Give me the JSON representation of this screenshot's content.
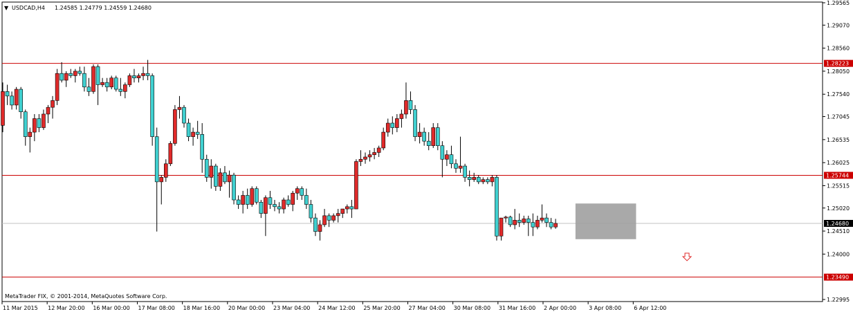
{
  "header": {
    "menu_glyph": "▼",
    "symbol": "USDCAD,H4",
    "ohlc": "1.24585 1.24779 1.24559 1.24680"
  },
  "footer": {
    "copyright": "MetaTrader FIX, © 2001-2014, MetaQuotes Software Corp."
  },
  "colors": {
    "bull": "#e02a2a",
    "bear": "#40d0d0",
    "wick": "#000000",
    "level_line": "#cc0000",
    "current_line": "#c0c0c0",
    "current_label_bg": "#000000",
    "box_fill": "#a0a0a0",
    "arrow": "#e02a2a"
  },
  "icons": {
    "sell_arrow": "down-arrow-icon"
  },
  "chart_data": {
    "type": "candlestick",
    "title": "USDCAD,H4",
    "ylim": [
      1.22995,
      1.29565
    ],
    "y_ticks": [
      "1.29565",
      "1.29070",
      "1.28560",
      "1.28050",
      "1.27540",
      "1.27045",
      "1.26535",
      "1.26025",
      "1.25515",
      "1.25020",
      "1.24510",
      "1.24000",
      "1.22995"
    ],
    "x_ticks": [
      "11 Mar 2015",
      "12 Mar 20:00",
      "16 Mar 00:00",
      "17 Mar 08:00",
      "18 Mar 16:00",
      "20 Mar 00:00",
      "23 Mar 04:00",
      "24 Mar 12:00",
      "25 Mar 20:00",
      "27 Mar 04:00",
      "30 Mar 08:00",
      "31 Mar 16:00",
      "2 Apr 00:00",
      "3 Apr 08:00",
      "6 Apr 12:00"
    ],
    "levels": [
      {
        "price": 1.28223,
        "label": "1.28223"
      },
      {
        "price": 1.25744,
        "label": "1.25744"
      },
      {
        "price": 1.2349,
        "label": "1.23490"
      }
    ],
    "current_price": {
      "price": 1.2468,
      "label": "1.24680"
    },
    "consolidation_box": {
      "start_index": 127,
      "end_index": 139,
      "high": 1.2512,
      "low": 1.2433
    },
    "sell_arrow": {
      "index": 151,
      "price": 1.2393
    },
    "candles": [
      [
        1.2685,
        1.278,
        1.267,
        1.276
      ],
      [
        1.276,
        1.2775,
        1.273,
        1.275
      ],
      [
        1.275,
        1.276,
        1.272,
        1.273
      ],
      [
        1.273,
        1.277,
        1.272,
        1.2765
      ],
      [
        1.2765,
        1.277,
        1.27,
        1.2715
      ],
      [
        1.2715,
        1.272,
        1.264,
        1.266
      ],
      [
        1.266,
        1.268,
        1.2625,
        1.267
      ],
      [
        1.267,
        1.271,
        1.265,
        1.27
      ],
      [
        1.27,
        1.271,
        1.267,
        1.268
      ],
      [
        1.268,
        1.272,
        1.2675,
        1.271
      ],
      [
        1.271,
        1.273,
        1.269,
        1.2725
      ],
      [
        1.2725,
        1.275,
        1.27,
        1.274
      ],
      [
        1.274,
        1.281,
        1.273,
        1.28
      ],
      [
        1.28,
        1.2825,
        1.278,
        1.2785
      ],
      [
        1.2785,
        1.2805,
        1.277,
        1.28
      ],
      [
        1.28,
        1.281,
        1.279,
        1.2795
      ],
      [
        1.2795,
        1.281,
        1.278,
        1.2805
      ],
      [
        1.2805,
        1.2815,
        1.2795,
        1.28
      ],
      [
        1.28,
        1.2815,
        1.276,
        1.277
      ],
      [
        1.277,
        1.279,
        1.275,
        1.276
      ],
      [
        1.276,
        1.282,
        1.2755,
        1.2815
      ],
      [
        1.2815,
        1.282,
        1.273,
        1.2775
      ],
      [
        1.2775,
        1.279,
        1.277,
        1.278
      ],
      [
        1.278,
        1.279,
        1.276,
        1.277
      ],
      [
        1.277,
        1.2795,
        1.2765,
        1.279
      ],
      [
        1.279,
        1.2795,
        1.276,
        1.2765
      ],
      [
        1.2765,
        1.279,
        1.275,
        1.276
      ],
      [
        1.276,
        1.278,
        1.2745,
        1.2775
      ],
      [
        1.2775,
        1.28,
        1.277,
        1.2795
      ],
      [
        1.2795,
        1.281,
        1.278,
        1.279
      ],
      [
        1.279,
        1.28,
        1.278,
        1.2795
      ],
      [
        1.2795,
        1.2815,
        1.2785,
        1.28
      ],
      [
        1.28,
        1.283,
        1.2785,
        1.2795
      ],
      [
        1.2795,
        1.28,
        1.264,
        1.266
      ],
      [
        1.266,
        1.268,
        1.245,
        1.256
      ],
      [
        1.256,
        1.2575,
        1.251,
        1.257
      ],
      [
        1.257,
        1.261,
        1.256,
        1.26
      ],
      [
        1.26,
        1.265,
        1.2595,
        1.2645
      ],
      [
        1.2645,
        1.273,
        1.264,
        1.272
      ],
      [
        1.272,
        1.275,
        1.27,
        1.2725
      ],
      [
        1.2725,
        1.273,
        1.268,
        1.269
      ],
      [
        1.269,
        1.27,
        1.265,
        1.266
      ],
      [
        1.266,
        1.268,
        1.264,
        1.267
      ],
      [
        1.267,
        1.2695,
        1.2655,
        1.2665
      ],
      [
        1.2665,
        1.269,
        1.258,
        1.261
      ],
      [
        1.261,
        1.262,
        1.256,
        1.257
      ],
      [
        1.257,
        1.261,
        1.2545,
        1.2595
      ],
      [
        1.2595,
        1.26,
        1.254,
        1.255
      ],
      [
        1.255,
        1.259,
        1.254,
        1.258
      ],
      [
        1.258,
        1.2595,
        1.2555,
        1.256
      ],
      [
        1.256,
        1.2585,
        1.2525,
        1.2575
      ],
      [
        1.2575,
        1.258,
        1.251,
        1.252
      ],
      [
        1.252,
        1.253,
        1.25,
        1.251
      ],
      [
        1.251,
        1.254,
        1.249,
        1.253
      ],
      [
        1.253,
        1.2545,
        1.25,
        1.251
      ],
      [
        1.251,
        1.255,
        1.2505,
        1.2545
      ],
      [
        1.2545,
        1.255,
        1.251,
        1.2515
      ],
      [
        1.2515,
        1.252,
        1.248,
        1.249
      ],
      [
        1.249,
        1.253,
        1.244,
        1.2525
      ],
      [
        1.2525,
        1.254,
        1.25,
        1.251
      ],
      [
        1.251,
        1.252,
        1.2495,
        1.2505
      ],
      [
        1.2505,
        1.2515,
        1.249,
        1.25
      ],
      [
        1.25,
        1.2525,
        1.249,
        1.252
      ],
      [
        1.252,
        1.253,
        1.2505,
        1.251
      ],
      [
        1.251,
        1.254,
        1.2495,
        1.2535
      ],
      [
        1.2535,
        1.255,
        1.252,
        1.2545
      ],
      [
        1.2545,
        1.255,
        1.252,
        1.253
      ],
      [
        1.253,
        1.2545,
        1.25,
        1.251
      ],
      [
        1.251,
        1.252,
        1.247,
        1.248
      ],
      [
        1.248,
        1.249,
        1.244,
        1.245
      ],
      [
        1.245,
        1.2475,
        1.243,
        1.2465
      ],
      [
        1.2465,
        1.25,
        1.246,
        1.2485
      ],
      [
        1.2485,
        1.249,
        1.246,
        1.2475
      ],
      [
        1.2475,
        1.249,
        1.247,
        1.2485
      ],
      [
        1.2485,
        1.25,
        1.247,
        1.249
      ],
      [
        1.249,
        1.25,
        1.248,
        1.25
      ],
      [
        1.25,
        1.251,
        1.249,
        1.2505
      ],
      [
        1.2505,
        1.252,
        1.248,
        1.25
      ],
      [
        1.25,
        1.261,
        1.25,
        1.2605
      ],
      [
        1.2605,
        1.263,
        1.2595,
        1.261
      ],
      [
        1.261,
        1.2625,
        1.26,
        1.2615
      ],
      [
        1.2615,
        1.263,
        1.2605,
        1.262
      ],
      [
        1.262,
        1.2635,
        1.261,
        1.2625
      ],
      [
        1.2625,
        1.264,
        1.2615,
        1.2635
      ],
      [
        1.2635,
        1.268,
        1.263,
        1.267
      ],
      [
        1.267,
        1.27,
        1.266,
        1.269
      ],
      [
        1.269,
        1.2705,
        1.2665,
        1.268
      ],
      [
        1.268,
        1.271,
        1.267,
        1.27
      ],
      [
        1.27,
        1.272,
        1.268,
        1.271
      ],
      [
        1.271,
        1.278,
        1.27,
        1.274
      ],
      [
        1.274,
        1.276,
        1.271,
        1.272
      ],
      [
        1.272,
        1.273,
        1.265,
        1.266
      ],
      [
        1.266,
        1.269,
        1.2645,
        1.267
      ],
      [
        1.267,
        1.268,
        1.264,
        1.265
      ],
      [
        1.265,
        1.267,
        1.263,
        1.264
      ],
      [
        1.264,
        1.269,
        1.2635,
        1.268
      ],
      [
        1.268,
        1.269,
        1.263,
        1.264
      ],
      [
        1.264,
        1.265,
        1.257,
        1.261
      ],
      [
        1.261,
        1.263,
        1.2595,
        1.262
      ],
      [
        1.262,
        1.264,
        1.259,
        1.26
      ],
      [
        1.26,
        1.261,
        1.258,
        1.259
      ],
      [
        1.259,
        1.266,
        1.258,
        1.2595
      ],
      [
        1.2595,
        1.26,
        1.256,
        1.257
      ],
      [
        1.257,
        1.2585,
        1.255,
        1.2565
      ],
      [
        1.2565,
        1.258,
        1.256,
        1.257
      ],
      [
        1.257,
        1.2575,
        1.2555,
        1.256
      ],
      [
        1.256,
        1.257,
        1.2555,
        1.2565
      ],
      [
        1.2565,
        1.257,
        1.2555,
        1.256
      ],
      [
        1.256,
        1.2575,
        1.255,
        1.257
      ],
      [
        1.257,
        1.2575,
        1.243,
        1.244
      ],
      [
        1.244,
        1.248,
        1.243,
        1.248
      ],
      [
        1.248,
        1.2485,
        1.247,
        1.2482
      ],
      [
        1.2482,
        1.2485,
        1.246,
        1.2465
      ],
      [
        1.2465,
        1.25,
        1.2455,
        1.2475
      ],
      [
        1.2475,
        1.249,
        1.246,
        1.247
      ],
      [
        1.247,
        1.2485,
        1.2465,
        1.2478
      ],
      [
        1.2478,
        1.2485,
        1.244,
        1.247
      ],
      [
        1.247,
        1.249,
        1.244,
        1.246
      ],
      [
        1.246,
        1.2485,
        1.2455,
        1.2475
      ],
      [
        1.2475,
        1.251,
        1.247,
        1.248
      ],
      [
        1.248,
        1.249,
        1.246,
        1.247
      ],
      [
        1.247,
        1.248,
        1.2455,
        1.246
      ],
      [
        1.246,
        1.2478,
        1.2456,
        1.2468
      ]
    ]
  }
}
